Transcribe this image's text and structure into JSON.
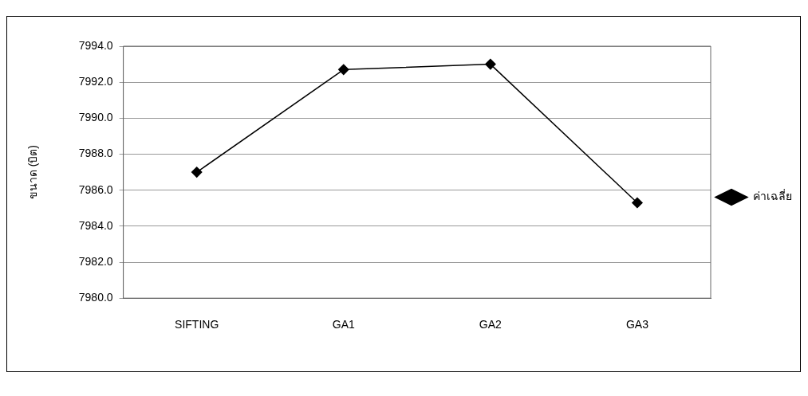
{
  "chart_data": {
    "type": "line",
    "ylabel": "ขนาด (บิต)",
    "categories": [
      "SIFTING",
      "GA1",
      "GA2",
      "GA3"
    ],
    "series": [
      {
        "name": "ค่าเฉลี่ย",
        "color": "#000000",
        "values": [
          7987.0,
          7992.7,
          7993.0,
          7985.3
        ]
      }
    ],
    "ylim": [
      7980,
      7994
    ],
    "yticks": [
      {
        "value": 7980,
        "label": "7980.0"
      },
      {
        "value": 7982,
        "label": "7982.0"
      },
      {
        "value": 7984,
        "label": "7984.0"
      },
      {
        "value": 7986,
        "label": "7986.0"
      },
      {
        "value": 7988,
        "label": "7988.0"
      },
      {
        "value": 7990,
        "label": "7990.0"
      },
      {
        "value": 7992,
        "label": "7992.0"
      },
      {
        "value": 7994,
        "label": "7994.0"
      }
    ],
    "grid": "y",
    "legend": "right",
    "marker": "diamond",
    "line_style": "solid"
  }
}
